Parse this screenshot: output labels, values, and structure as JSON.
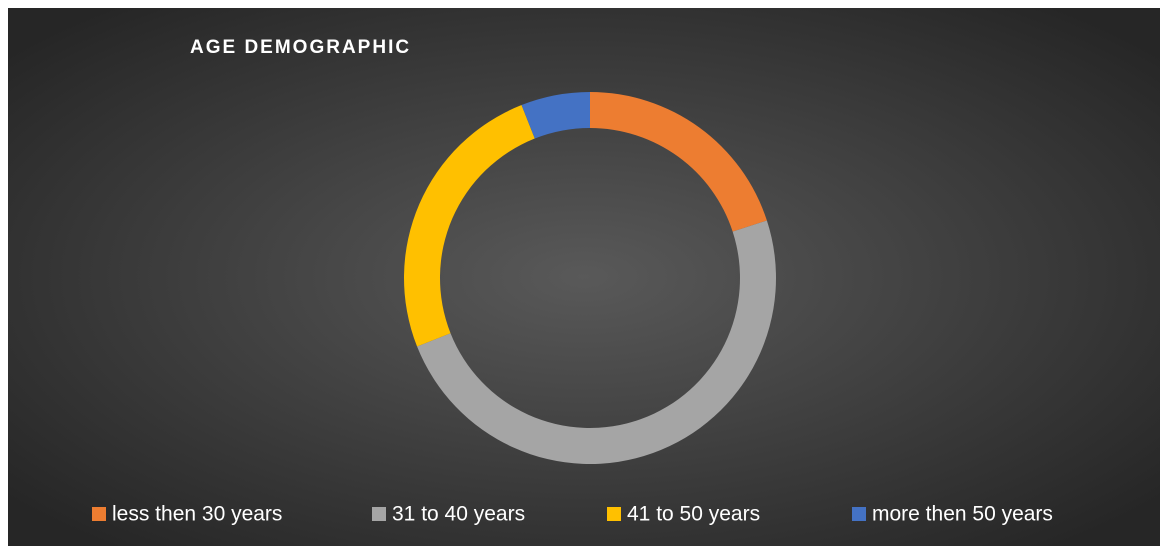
{
  "chart_data": {
    "type": "donut",
    "title": "AGE DEMOGRAPHIC",
    "categories": [
      "less then 30 years",
      "31 to 40 years",
      "41 to 50 years",
      "more then 50 years"
    ],
    "values": [
      20,
      49,
      25,
      6
    ],
    "colors": [
      "#ed7d31",
      "#a5a5a5",
      "#ffc000",
      "#4472c4"
    ],
    "legend": "bottom"
  }
}
